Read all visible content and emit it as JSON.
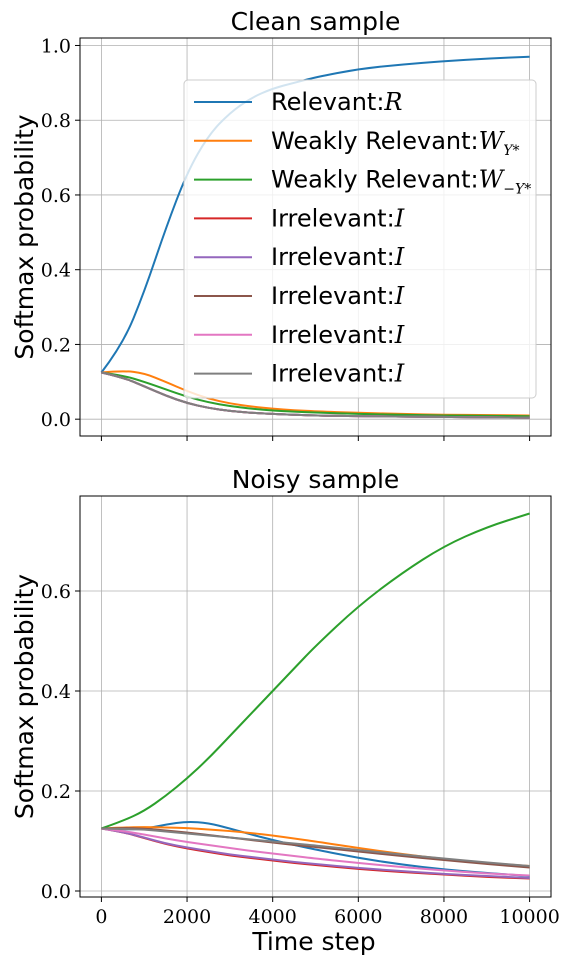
{
  "figure": {
    "xlabel": "Time step"
  },
  "chart_data": [
    {
      "type": "line",
      "title": "Clean sample",
      "xlabel": "",
      "ylabel": "Softmax probability",
      "xlim": [
        -500,
        10500
      ],
      "ylim": [
        -0.045,
        1.02
      ],
      "xticks": [
        0,
        2000,
        4000,
        6000,
        8000,
        10000
      ],
      "yticks": [
        0.0,
        0.2,
        0.4,
        0.6,
        0.8,
        1.0
      ],
      "ytick_labels": [
        "0.0",
        "0.2",
        "0.4",
        "0.6",
        "0.8",
        "1.0"
      ],
      "show_x_tick_labels": false,
      "grid": true,
      "legend": "upper right",
      "x": [
        0,
        500,
        1000,
        1500,
        2000,
        2500,
        3000,
        3500,
        4000,
        4500,
        5000,
        6000,
        7000,
        8000,
        9000,
        10000
      ],
      "series": [
        {
          "name": "Relevant",
          "math": "R",
          "color": "#1f77b4",
          "values": [
            0.125,
            0.2,
            0.34,
            0.51,
            0.66,
            0.76,
            0.82,
            0.86,
            0.885,
            0.9,
            0.915,
            0.937,
            0.949,
            0.958,
            0.965,
            0.97
          ]
        },
        {
          "name": "Weakly Relevant",
          "math": "W_{Y*}",
          "color": "#ff7f0e",
          "values": [
            0.125,
            0.13,
            0.123,
            0.1,
            0.075,
            0.055,
            0.042,
            0.034,
            0.028,
            0.024,
            0.021,
            0.017,
            0.014,
            0.012,
            0.011,
            0.01
          ]
        },
        {
          "name": "Weakly Relevant",
          "math": "W_{-Y*}",
          "color": "#2ca02c",
          "values": [
            0.125,
            0.117,
            0.1,
            0.08,
            0.06,
            0.045,
            0.035,
            0.028,
            0.023,
            0.02,
            0.018,
            0.014,
            0.012,
            0.01,
            0.009,
            0.008
          ]
        },
        {
          "name": "Irrelevant",
          "math": "I",
          "color": "#d62728",
          "values": [
            0.125,
            0.112,
            0.088,
            0.063,
            0.043,
            0.03,
            0.022,
            0.017,
            0.014,
            0.012,
            0.01,
            0.008,
            0.007,
            0.006,
            0.005,
            0.004
          ]
        },
        {
          "name": "Irrelevant",
          "math": "I",
          "color": "#9467bd",
          "values": [
            0.125,
            0.112,
            0.088,
            0.063,
            0.043,
            0.03,
            0.022,
            0.017,
            0.014,
            0.012,
            0.01,
            0.008,
            0.007,
            0.006,
            0.005,
            0.004
          ]
        },
        {
          "name": "Irrelevant",
          "math": "I",
          "color": "#8c564b",
          "values": [
            0.125,
            0.112,
            0.088,
            0.063,
            0.043,
            0.03,
            0.022,
            0.017,
            0.014,
            0.012,
            0.01,
            0.008,
            0.007,
            0.006,
            0.005,
            0.004
          ]
        },
        {
          "name": "Irrelevant",
          "math": "I",
          "color": "#e377c2",
          "values": [
            0.125,
            0.112,
            0.088,
            0.063,
            0.043,
            0.03,
            0.022,
            0.017,
            0.014,
            0.012,
            0.01,
            0.008,
            0.007,
            0.006,
            0.005,
            0.004
          ]
        },
        {
          "name": "Irrelevant",
          "math": "I",
          "color": "#7f7f7f",
          "values": [
            0.125,
            0.112,
            0.088,
            0.063,
            0.043,
            0.03,
            0.022,
            0.017,
            0.014,
            0.012,
            0.01,
            0.008,
            0.007,
            0.006,
            0.005,
            0.004
          ]
        }
      ]
    },
    {
      "type": "line",
      "title": "Noisy sample",
      "xlabel": "Time step",
      "ylabel": "Softmax probability",
      "xlim": [
        -500,
        10500
      ],
      "ylim": [
        -0.012,
        0.79
      ],
      "xticks": [
        0,
        2000,
        4000,
        6000,
        8000,
        10000
      ],
      "yticks": [
        0.0,
        0.2,
        0.4,
        0.6
      ],
      "ytick_labels": [
        "0.0",
        "0.2",
        "0.4",
        "0.6"
      ],
      "show_x_tick_labels": true,
      "grid": true,
      "legend": "none",
      "x": [
        0,
        500,
        1000,
        1500,
        2000,
        2500,
        3000,
        3500,
        4000,
        4500,
        5000,
        6000,
        7000,
        8000,
        9000,
        10000
      ],
      "series": [
        {
          "color": "#1f77b4",
          "values": [
            0.125,
            0.123,
            0.124,
            0.133,
            0.139,
            0.136,
            0.125,
            0.113,
            0.102,
            0.092,
            0.083,
            0.066,
            0.053,
            0.043,
            0.036,
            0.03
          ]
        },
        {
          "color": "#ff7f0e",
          "values": [
            0.125,
            0.127,
            0.128,
            0.127,
            0.126,
            0.123,
            0.12,
            0.116,
            0.111,
            0.105,
            0.099,
            0.086,
            0.074,
            0.064,
            0.056,
            0.05
          ]
        },
        {
          "color": "#2ca02c",
          "values": [
            0.125,
            0.14,
            0.16,
            0.19,
            0.225,
            0.265,
            0.31,
            0.355,
            0.4,
            0.445,
            0.49,
            0.57,
            0.635,
            0.69,
            0.728,
            0.755
          ]
        },
        {
          "color": "#d62728",
          "values": [
            0.125,
            0.118,
            0.106,
            0.094,
            0.085,
            0.078,
            0.071,
            0.066,
            0.061,
            0.056,
            0.052,
            0.044,
            0.038,
            0.033,
            0.028,
            0.025
          ]
        },
        {
          "color": "#9467bd",
          "values": [
            0.125,
            0.118,
            0.107,
            0.095,
            0.087,
            0.08,
            0.073,
            0.068,
            0.063,
            0.058,
            0.054,
            0.046,
            0.04,
            0.034,
            0.03,
            0.026
          ]
        },
        {
          "color": "#8c564b",
          "values": [
            0.125,
            0.126,
            0.125,
            0.121,
            0.117,
            0.112,
            0.107,
            0.102,
            0.097,
            0.092,
            0.088,
            0.079,
            0.07,
            0.062,
            0.054,
            0.047
          ]
        },
        {
          "color": "#e377c2",
          "values": [
            0.125,
            0.12,
            0.113,
            0.105,
            0.098,
            0.092,
            0.086,
            0.08,
            0.075,
            0.07,
            0.065,
            0.056,
            0.048,
            0.041,
            0.035,
            0.031
          ]
        },
        {
          "color": "#7f7f7f",
          "values": [
            0.125,
            0.124,
            0.123,
            0.119,
            0.115,
            0.111,
            0.107,
            0.103,
            0.099,
            0.095,
            0.091,
            0.082,
            0.073,
            0.065,
            0.057,
            0.05
          ]
        }
      ]
    }
  ]
}
